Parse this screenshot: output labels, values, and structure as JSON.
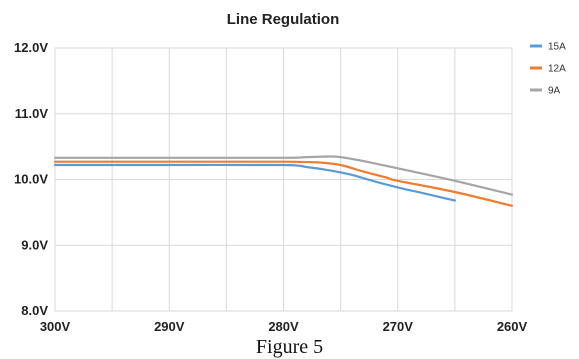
{
  "caption": "Figure 5",
  "chart_data": {
    "type": "line",
    "title": "Line Regulation",
    "xlabel": "",
    "ylabel": "",
    "x_ticks": [
      300,
      290,
      280,
      270,
      260
    ],
    "x_tick_labels": [
      "300V",
      "290V",
      "280V",
      "270V",
      "260V"
    ],
    "xlim": [
      300,
      260
    ],
    "y_ticks": [
      8,
      9,
      10,
      11,
      12
    ],
    "y_tick_labels": [
      "8.0V",
      "9.0V",
      "10.0V",
      "11.0V",
      "12.0V"
    ],
    "ylim": [
      8,
      12
    ],
    "grid": true,
    "legend_position": "top-right",
    "series": [
      {
        "name": "15A",
        "color": "#5b9bd5",
        "x": [
          300,
          290,
          280,
          278,
          276,
          274,
          272,
          270,
          268,
          266,
          265
        ],
        "y": [
          10.22,
          10.22,
          10.22,
          10.19,
          10.14,
          10.07,
          9.97,
          9.88,
          9.8,
          9.72,
          9.68
        ]
      },
      {
        "name": "12A",
        "color": "#ed7d31",
        "x": [
          300,
          290,
          280,
          277,
          275,
          273,
          271,
          270,
          265,
          260
        ],
        "y": [
          10.27,
          10.27,
          10.27,
          10.26,
          10.22,
          10.12,
          10.03,
          9.98,
          9.81,
          9.6
        ]
      },
      {
        "name": "9A",
        "color": "#a5a5a5",
        "x": [
          300,
          290,
          280,
          278,
          276,
          275,
          273,
          270,
          265,
          260
        ],
        "y": [
          10.33,
          10.33,
          10.33,
          10.34,
          10.35,
          10.34,
          10.28,
          10.17,
          9.98,
          9.77
        ]
      }
    ]
  }
}
